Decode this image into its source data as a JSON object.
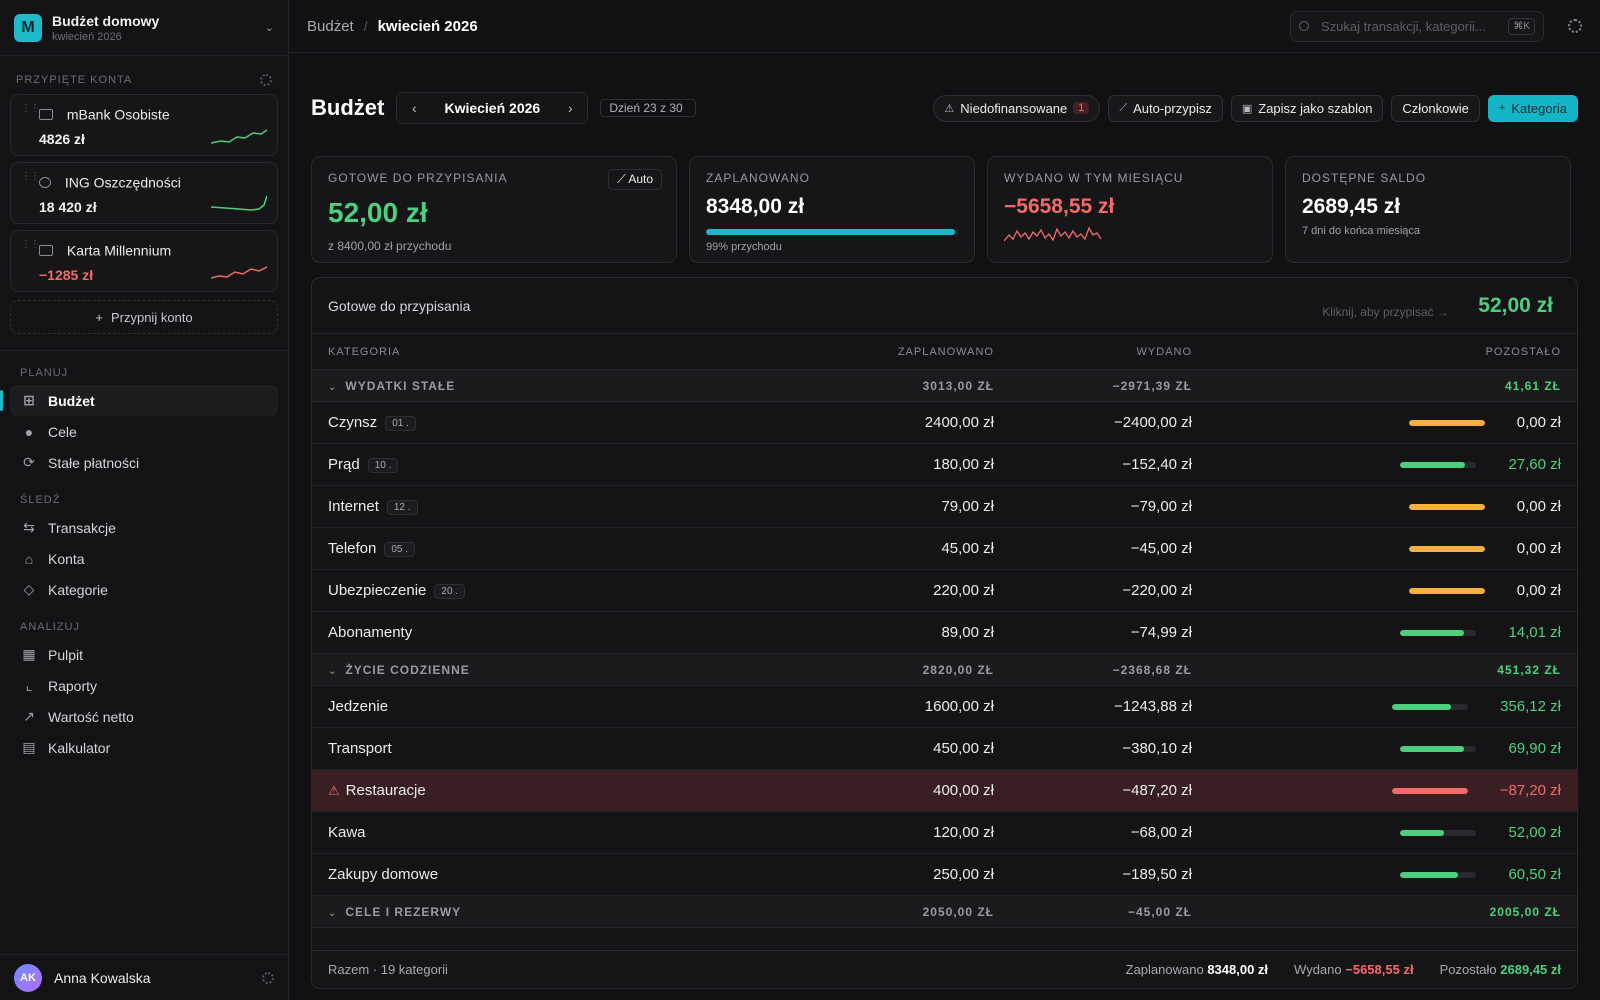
{
  "workspace": {
    "initial": "M",
    "title": "Budżet domowy",
    "subtitle": "kwiecień 2026"
  },
  "pinned": {
    "heading": "PRZYPIĘTE KONTA",
    "accounts": [
      {
        "name": "mBank Osobiste",
        "balance": "4826 zł",
        "trend": "up"
      },
      {
        "name": "ING Oszczędności",
        "balance": "18 420 zł",
        "trend": "up"
      },
      {
        "name": "Karta Millennium",
        "balance": "−1285 zł",
        "trend": "down"
      }
    ],
    "pin_label": "Przypnij konto"
  },
  "nav": {
    "plan_head": "PLANUJ",
    "plan": [
      "Budżet",
      "Cele",
      "Stałe płatności"
    ],
    "track_head": "ŚLEDŹ",
    "track": [
      "Transakcje",
      "Konta",
      "Kategorie"
    ],
    "analyze_head": "ANALIZUJ",
    "analyze": [
      "Pulpit",
      "Raporty",
      "Wartość netto",
      "Kalkulator"
    ]
  },
  "user": {
    "initials": "AK",
    "name": "Anna Kowalska"
  },
  "topbar": {
    "crumb_root": "Budżet",
    "crumb_current": "kwiecień 2026",
    "search_placeholder": "Szukaj transakcji, kategorii...",
    "search_kbd": "⌘K"
  },
  "page": {
    "title": "Budżet",
    "month": "Kwiecień 2026",
    "day_chip": "Dzień 23 z 30",
    "actions": {
      "underfunded": "Niedofinansowane",
      "underfunded_count": "1",
      "auto_assign": "Auto-przypisz",
      "save_template": "Zapisz jako szablon",
      "members": "Członkowie",
      "category": "Kategoria"
    }
  },
  "cards": {
    "ready": {
      "title": "GOTOWE DO PRZYPISANIA",
      "value": "52,00 zł",
      "sub": "z 8400,00 zł przychodu",
      "auto": "Auto"
    },
    "planned": {
      "title": "ZAPLANOWANO",
      "value": "8348,00 zł",
      "sub": "99% przychodu",
      "progress": 0.99
    },
    "spent": {
      "title": "WYDANO W TYM MIESIĄCU",
      "value": "−5658,55 zł"
    },
    "available": {
      "title": "DOSTĘPNE SALDO",
      "value": "2689,45 zł",
      "sub": "7 dni do końca miesiąca"
    }
  },
  "ready_row": {
    "label": "Gotowe do przypisania",
    "hint": "Kliknij, aby przypisać →",
    "value": "52,00 zł"
  },
  "columns": {
    "category": "KATEGORIA",
    "planned": "ZAPLANOWANO",
    "spent": "WYDANO",
    "remaining": "POZOSTAŁO"
  },
  "groups": [
    {
      "name": "WYDATKI STAŁE",
      "planned": "3013,00 ZŁ",
      "spent": "−2971,39 ZŁ",
      "remaining": "41,61 ZŁ",
      "rows": [
        {
          "name": "Czynsz",
          "tag": "01 .",
          "planned": "2400,00 zł",
          "spent": "−2400,00 zł",
          "remaining": "0,00 zł",
          "fill": 1.0,
          "state": "full"
        },
        {
          "name": "Prąd",
          "tag": "10 .",
          "planned": "180,00 zł",
          "spent": "−152,40 zł",
          "remaining": "27,60 zł",
          "fill": 0.85,
          "state": "ok"
        },
        {
          "name": "Internet",
          "tag": "12 .",
          "planned": "79,00 zł",
          "spent": "−79,00 zł",
          "remaining": "0,00 zł",
          "fill": 1.0,
          "state": "full"
        },
        {
          "name": "Telefon",
          "tag": "05 .",
          "planned": "45,00 zł",
          "spent": "−45,00 zł",
          "remaining": "0,00 zł",
          "fill": 1.0,
          "state": "full"
        },
        {
          "name": "Ubezpieczenie",
          "tag": "20 .",
          "planned": "220,00 zł",
          "spent": "−220,00 zł",
          "remaining": "0,00 zł",
          "fill": 1.0,
          "state": "full"
        },
        {
          "name": "Abonamenty",
          "tag": "",
          "planned": "89,00 zł",
          "spent": "−74,99 zł",
          "remaining": "14,01 zł",
          "fill": 0.84,
          "state": "ok"
        }
      ]
    },
    {
      "name": "ŻYCIE CODZIENNE",
      "planned": "2820,00 ZŁ",
      "spent": "−2368,68 ZŁ",
      "remaining": "451,32 ZŁ",
      "rows": [
        {
          "name": "Jedzenie",
          "tag": "",
          "planned": "1600,00 zł",
          "spent": "−1243,88 zł",
          "remaining": "356,12 zł",
          "fill": 0.78,
          "state": "ok"
        },
        {
          "name": "Transport",
          "tag": "",
          "planned": "450,00 zł",
          "spent": "−380,10 zł",
          "remaining": "69,90 zł",
          "fill": 0.84,
          "state": "ok"
        },
        {
          "name": "Restauracje",
          "tag": "",
          "planned": "400,00 zł",
          "spent": "−487,20 zł",
          "remaining": "−87,20 zł",
          "fill": 1.0,
          "state": "over"
        },
        {
          "name": "Kawa",
          "tag": "",
          "planned": "120,00 zł",
          "spent": "−68,00 zł",
          "remaining": "52,00 zł",
          "fill": 0.57,
          "state": "ok"
        },
        {
          "name": "Zakupy domowe",
          "tag": "",
          "planned": "250,00 zł",
          "spent": "−189,50 zł",
          "remaining": "60,50 zł",
          "fill": 0.76,
          "state": "ok"
        }
      ]
    },
    {
      "name": "CELE I REZERWY",
      "planned": "2050,00 ZŁ",
      "spent": "−45,00 ZŁ",
      "remaining": "2005,00 ZŁ",
      "rows": []
    }
  ],
  "footer": {
    "total": "Razem · 19 kategorii",
    "planned_label": "Zaplanowano",
    "planned": "8348,00 zł",
    "spent_label": "Wydano",
    "spent": "−5658,55 zł",
    "remaining_label": "Pozostało",
    "remaining": "2689,45 zł"
  },
  "colors": {
    "accent": "#1fb8c9",
    "positive": "#4cd07d",
    "negative": "#f26b6b",
    "full": "#f5b13d"
  }
}
